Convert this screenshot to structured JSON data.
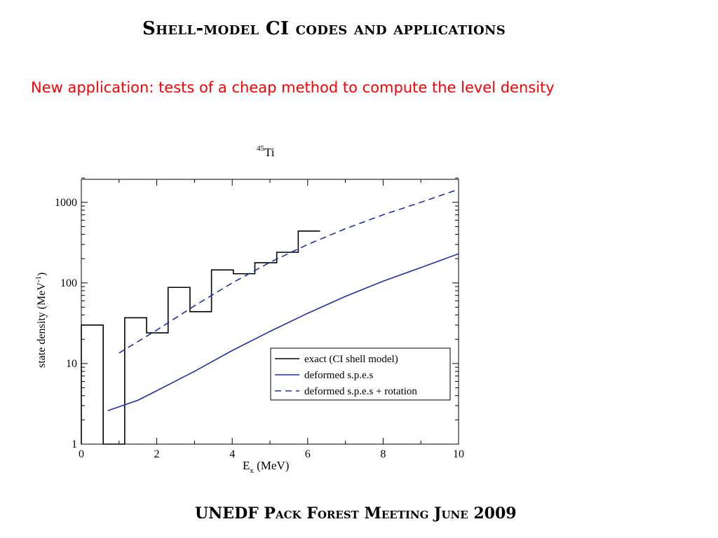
{
  "slide": {
    "title": "Shell-model CI codes and applications",
    "subtitle": "New application: tests of a cheap method to compute the level density",
    "footer": "UNEDF Pack Forest Meeting June 2009"
  },
  "chart_data": {
    "type": "line",
    "title_mass": "45",
    "title_element": "Ti",
    "xlabel_main": "E",
    "xlabel_sub": "x",
    "xlabel_unit": " (MeV)",
    "ylabel_main": "state density (MeV",
    "ylabel_sup": "-1",
    "ylabel_end": ")",
    "xlim": [
      0,
      10
    ],
    "ylim": [
      1,
      2000
    ],
    "yscale": "log",
    "grid": false,
    "legend_position": "lower-right",
    "x_ticks": [
      "0",
      "2",
      "4",
      "6",
      "8",
      "10"
    ],
    "y_ticks": [
      "1",
      "10",
      "100",
      "1000"
    ],
    "series": [
      {
        "name": "exact (CI shell model)",
        "style": "step",
        "color": "#000000",
        "dash": false,
        "bins": [
          {
            "x0": 0.0,
            "x1": 0.58,
            "y": 30
          },
          {
            "x0": 0.58,
            "x1": 1.15,
            "y": 1
          },
          {
            "x0": 1.15,
            "x1": 1.73,
            "y": 37
          },
          {
            "x0": 1.73,
            "x1": 2.3,
            "y": 24
          },
          {
            "x0": 2.3,
            "x1": 2.88,
            "y": 88
          },
          {
            "x0": 2.88,
            "x1": 3.45,
            "y": 44
          },
          {
            "x0": 3.45,
            "x1": 4.03,
            "y": 145
          },
          {
            "x0": 4.03,
            "x1": 4.6,
            "y": 130
          },
          {
            "x0": 4.6,
            "x1": 5.18,
            "y": 178
          },
          {
            "x0": 5.18,
            "x1": 5.75,
            "y": 240
          },
          {
            "x0": 5.75,
            "x1": 6.33,
            "y": 440
          }
        ]
      },
      {
        "name": "deformed s.p.e.s",
        "style": "line",
        "color": "#1f2fa8",
        "dash": false,
        "points": [
          [
            0.7,
            2.6
          ],
          [
            1.5,
            3.5
          ],
          [
            2.0,
            4.6
          ],
          [
            3.0,
            8.0
          ],
          [
            4.0,
            14.5
          ],
          [
            5.0,
            25
          ],
          [
            6.0,
            42
          ],
          [
            7.0,
            68
          ],
          [
            8.0,
            105
          ],
          [
            9.0,
            155
          ],
          [
            10.0,
            230
          ]
        ]
      },
      {
        "name": "deformed s.p.e.s + rotation",
        "style": "line",
        "color": "#1f2fa8",
        "dash": true,
        "points": [
          [
            1.0,
            13.5
          ],
          [
            2.0,
            26
          ],
          [
            3.0,
            52
          ],
          [
            4.0,
            100
          ],
          [
            5.0,
            180
          ],
          [
            6.0,
            300
          ],
          [
            7.0,
            470
          ],
          [
            8.0,
            700
          ],
          [
            9.0,
            1000
          ],
          [
            10.0,
            1450
          ]
        ]
      }
    ]
  }
}
